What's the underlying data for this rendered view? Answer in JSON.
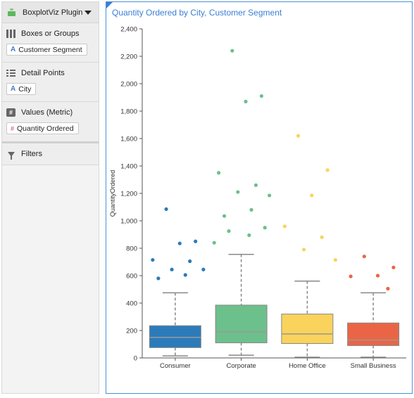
{
  "sidebar": {
    "plugin_title": "BoxplotViz Plugin",
    "sections": [
      {
        "title": "Boxes or Groups",
        "icon": "columns-icon",
        "field": "Customer Segment",
        "field_type": "A"
      },
      {
        "title": "Detail Points",
        "icon": "list-icon",
        "field": "City",
        "field_type": "A"
      },
      {
        "title": "Values (Metric)",
        "icon": "hash-icon",
        "field": "Quantity Ordered",
        "field_type": "#"
      }
    ],
    "filters_label": "Filters"
  },
  "chart_data": {
    "type": "boxplot",
    "title": "Quantity Ordered by City, Customer Segment",
    "xlabel": "",
    "ylabel": "QuantityOrdered",
    "ylim": [
      0,
      2400
    ],
    "yticks": [
      "0",
      "200",
      "400",
      "600",
      "800",
      "1,000",
      "1,200",
      "1,400",
      "1,600",
      "1,800",
      "2,000",
      "2,200",
      "2,400"
    ],
    "grid": false,
    "categories": [
      "Consumer",
      "Corporate",
      "Home Office",
      "Small Business"
    ],
    "boxes": [
      {
        "category": "Consumer",
        "color": "#2b7bba",
        "whisker_low": 15,
        "q1": 75,
        "median": 150,
        "q3": 235,
        "whisker_high": 475,
        "outliers": [
          1085,
          850,
          835,
          715,
          705,
          645,
          645,
          605,
          580
        ]
      },
      {
        "category": "Corporate",
        "color": "#6cc08b",
        "whisker_low": 20,
        "q1": 110,
        "median": 190,
        "q3": 385,
        "whisker_high": 755,
        "outliers": [
          2240,
          1910,
          1870,
          1350,
          1260,
          1210,
          1185,
          1080,
          1035,
          950,
          925,
          895,
          840
        ]
      },
      {
        "category": "Home Office",
        "color": "#f9d35b",
        "whisker_low": 5,
        "q1": 105,
        "median": 175,
        "q3": 320,
        "whisker_high": 560,
        "outliers": [
          1620,
          1370,
          1185,
          960,
          880,
          790,
          715
        ]
      },
      {
        "category": "Small Business",
        "color": "#ea6545",
        "whisker_low": 5,
        "q1": 90,
        "median": 130,
        "q3": 255,
        "whisker_high": 475,
        "outliers": [
          740,
          660,
          600,
          595,
          505
        ]
      }
    ]
  }
}
